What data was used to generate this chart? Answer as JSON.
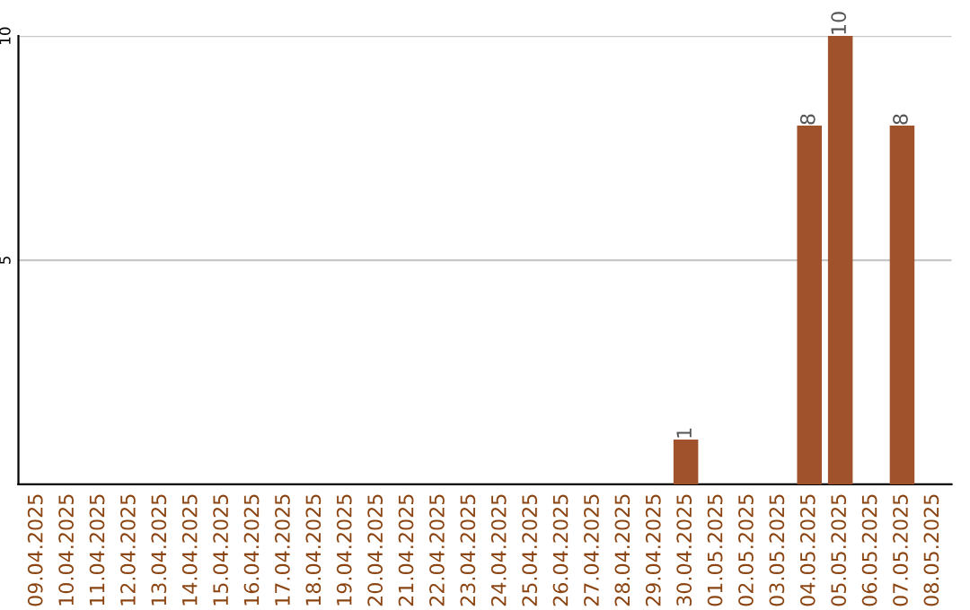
{
  "chart_data": {
    "type": "bar",
    "categories": [
      "09.04.2025",
      "10.04.2025",
      "11.04.2025",
      "12.04.2025",
      "13.04.2025",
      "14.04.2025",
      "15.04.2025",
      "16.04.2025",
      "17.04.2025",
      "18.04.2025",
      "19.04.2025",
      "20.04.2025",
      "21.04.2025",
      "22.04.2025",
      "23.04.2025",
      "24.04.2025",
      "25.04.2025",
      "26.04.2025",
      "27.04.2025",
      "28.04.2025",
      "29.04.2025",
      "30.04.2025",
      "01.05.2025",
      "02.05.2025",
      "03.05.2025",
      "04.05.2025",
      "05.05.2025",
      "06.05.2025",
      "07.05.2025",
      "08.05.2025"
    ],
    "values": [
      0,
      0,
      0,
      0,
      0,
      0,
      0,
      0,
      0,
      0,
      0,
      0,
      0,
      0,
      0,
      0,
      0,
      0,
      0,
      0,
      0,
      1,
      0,
      0,
      0,
      8,
      10,
      0,
      8,
      0
    ],
    "value_labels": [
      null,
      null,
      null,
      null,
      null,
      null,
      null,
      null,
      null,
      null,
      null,
      null,
      null,
      null,
      null,
      null,
      null,
      null,
      null,
      null,
      null,
      "1",
      null,
      null,
      null,
      "8",
      "10",
      null,
      "8",
      null
    ],
    "color": "#a0522d",
    "ylim": [
      0,
      10
    ],
    "yticks": [
      5,
      10
    ],
    "grid": "y",
    "legend": false
  }
}
